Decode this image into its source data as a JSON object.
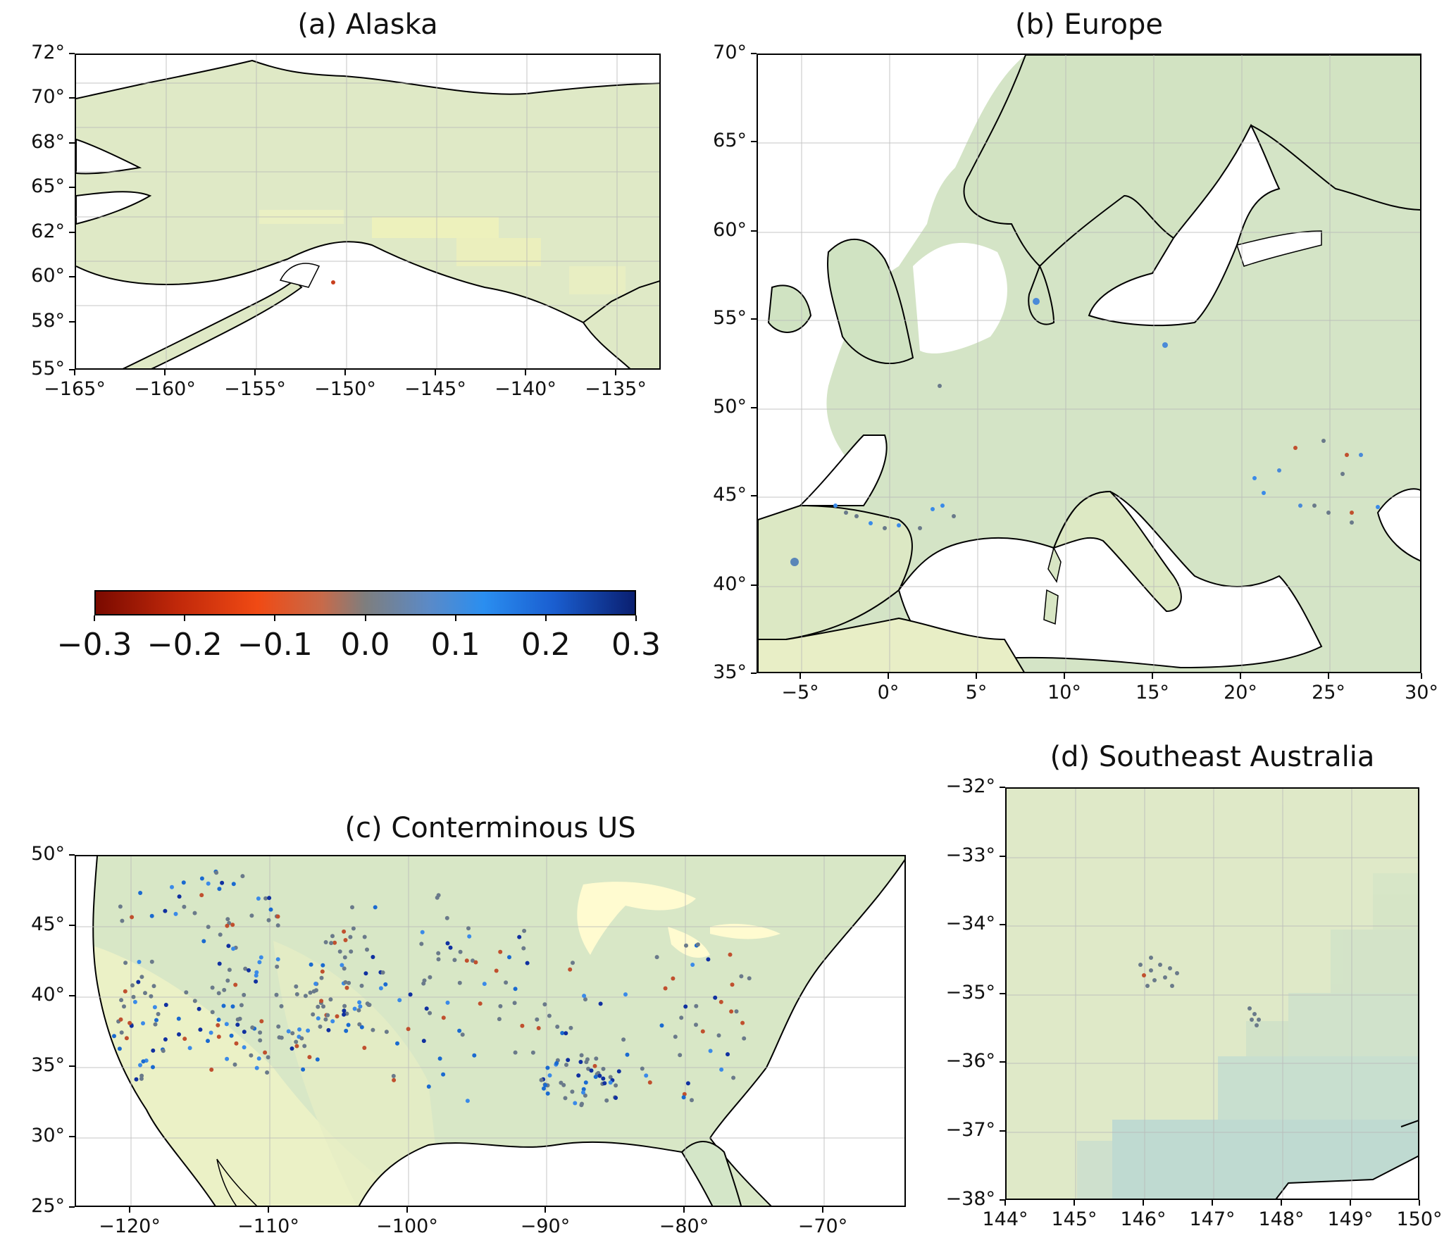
{
  "panels": {
    "alaska": {
      "title": "(a) Alaska",
      "lat_ticks": [
        "72°",
        "70°",
        "68°",
        "65°",
        "62°",
        "60°",
        "58°",
        "55°"
      ],
      "lon_ticks": [
        "−165°",
        "−160°",
        "−155°",
        "−150°",
        "−145°",
        "−140°",
        "−135°"
      ]
    },
    "europe": {
      "title": "(b) Europe",
      "lat_ticks": [
        "70°",
        "65°",
        "60°",
        "55°",
        "50°",
        "45°",
        "40°",
        "35°"
      ],
      "lon_ticks": [
        "−5°",
        "0°",
        "5°",
        "10°",
        "15°",
        "20°",
        "25°",
        "30°"
      ]
    },
    "conus": {
      "title": "(c) Conterminous US",
      "lat_ticks": [
        "50°",
        "45°",
        "40°",
        "35°",
        "30°",
        "25°"
      ],
      "lon_ticks": [
        "−120°",
        "−110°",
        "−100°",
        "−90°",
        "−80°",
        "−70°"
      ]
    },
    "australia": {
      "title": "(d) Southeast Australia",
      "lat_ticks": [
        "−32°",
        "−33°",
        "−34°",
        "−35°",
        "−36°",
        "−37°",
        "−38°"
      ],
      "lon_ticks": [
        "144°",
        "145°",
        "146°",
        "147°",
        "148°",
        "149°",
        "150°"
      ]
    }
  },
  "colorbar": {
    "ticks": [
      "−0.3",
      "−0.2",
      "−0.1",
      "0.0",
      "0.1",
      "0.2",
      "0.3"
    ],
    "min": -0.3,
    "max": 0.3,
    "colors": [
      "#7a0a00",
      "#f04a14",
      "#7e7e7e",
      "#2a8ef0",
      "#0a1f70"
    ]
  },
  "colors": {
    "land": "#dfe9c8",
    "land_moist": "#c3dcc8",
    "land_dry": "#f2f4c4",
    "water": "#ffffff",
    "coast": "#000000",
    "grid": "#b8b8b8"
  }
}
